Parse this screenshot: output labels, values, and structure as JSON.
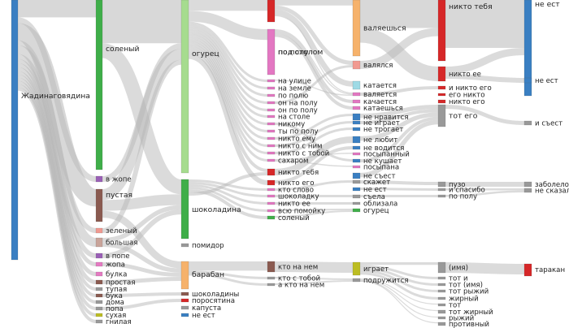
{
  "columns": [
    {
      "nodes": [
        {
          "label": "Жадинаговядина",
          "color": "#3a7fc2"
        }
      ]
    },
    {
      "nodes": [
        {
          "label": "соленый",
          "color": "#3fae49"
        },
        {
          "label": "в жопе",
          "color": "#9a5fb6"
        },
        {
          "label": "пустая",
          "color": "#8a5a50"
        },
        {
          "label": "зеленый",
          "color": "#f19a91"
        },
        {
          "label": "большая",
          "color": "#c9a49a"
        },
        {
          "label": "в попе",
          "color": "#9a5fb6"
        },
        {
          "label": "жопа",
          "color": "#e47ac2"
        },
        {
          "label": "булка",
          "color": "#e47ac2"
        },
        {
          "label": "простая",
          "color": "#8a5a50"
        },
        {
          "label": "тупая",
          "color": "#999999"
        },
        {
          "label": "бука",
          "color": "#8a5a50"
        },
        {
          "label": "дома",
          "color": "#999999"
        },
        {
          "label": "попа",
          "color": "#999999"
        },
        {
          "label": "сухая",
          "color": "#bcbd22"
        },
        {
          "label": "гнилая",
          "color": "#999999"
        }
      ]
    },
    {
      "nodes": [
        {
          "label": "огурец",
          "color": "#a6dc8f"
        },
        {
          "label": "шоколадина",
          "color": "#3fae49"
        },
        {
          "label": "помидор",
          "color": "#999999"
        },
        {
          "label": "барабан",
          "color": "#f6b26b"
        },
        {
          "label": "шоколадины",
          "color": "#8a5a50"
        },
        {
          "label": "поросятина",
          "color": "#d62728"
        },
        {
          "label": "капуста",
          "color": "#999999"
        },
        {
          "label": "не ест",
          "color": "#3a7fc2"
        }
      ]
    },
    {
      "nodes": [
        {
          "label": "по полу",
          "color": "#d62728"
        },
        {
          "label": "под столом",
          "color": "#e377c2"
        },
        {
          "label": "на улице",
          "color": "#e377c2"
        },
        {
          "label": "на земле",
          "color": "#e377c2"
        },
        {
          "label": "по полю",
          "color": "#e377c2"
        },
        {
          "label": "он на полу",
          "color": "#e377c2"
        },
        {
          "label": "он по полу",
          "color": "#e377c2"
        },
        {
          "label": "на столе",
          "color": "#e377c2"
        },
        {
          "label": "никому",
          "color": "#e377c2"
        },
        {
          "label": "ты по полу",
          "color": "#e377c2"
        },
        {
          "label": "никто ему",
          "color": "#e377c2"
        },
        {
          "label": "никто с ним",
          "color": "#e377c2"
        },
        {
          "label": "никто с тобой",
          "color": "#e377c2"
        },
        {
          "label": "сахаром",
          "color": "#e377c2"
        },
        {
          "label": "никто тебя",
          "color": "#d62728"
        },
        {
          "label": "никто его",
          "color": "#d62728"
        },
        {
          "label": "кто слово",
          "color": "#e377c2"
        },
        {
          "label": "шоколадку",
          "color": "#e377c2"
        },
        {
          "label": "никто ее",
          "color": "#e377c2"
        },
        {
          "label": "всю помойку",
          "color": "#e377c2"
        },
        {
          "label": "соленый",
          "color": "#3fae49"
        },
        {
          "label": "кто на нем",
          "color": "#8a5a50"
        },
        {
          "label": "кто с тобой",
          "color": "#999999"
        },
        {
          "label": "а кто на нем",
          "color": "#999999"
        }
      ]
    },
    {
      "nodes": [
        {
          "label": "валяешься",
          "color": "#f6b26b"
        },
        {
          "label": "валялся",
          "color": "#f19a91"
        },
        {
          "label": "катается",
          "color": "#9edae5"
        },
        {
          "label": "валяется",
          "color": "#e377c2"
        },
        {
          "label": "качается",
          "color": "#e377c2"
        },
        {
          "label": "катаешься",
          "color": "#e377c2"
        },
        {
          "label": "не нравится",
          "color": "#3a7fc2"
        },
        {
          "label": "не играет",
          "color": "#3a7fc2"
        },
        {
          "label": "не трогает",
          "color": "#3a7fc2"
        },
        {
          "label": "не любит",
          "color": "#3a7fc2"
        },
        {
          "label": "не водится",
          "color": "#3a7fc2"
        },
        {
          "label": "посыпанный",
          "color": "#e377c2"
        },
        {
          "label": "не кушает",
          "color": "#3a7fc2"
        },
        {
          "label": "посыпана",
          "color": "#e377c2"
        },
        {
          "label": "не съест",
          "color": "#3a7fc2"
        },
        {
          "label": "скажет",
          "color": "#999999"
        },
        {
          "label": "не ест",
          "color": "#3a7fc2"
        },
        {
          "label": "съела",
          "color": "#999999"
        },
        {
          "label": "облизала",
          "color": "#999999"
        },
        {
          "label": "огурец",
          "color": "#3fae49"
        },
        {
          "label": "играет",
          "color": "#bcbd22"
        },
        {
          "label": "подружится",
          "color": "#999999"
        }
      ]
    },
    {
      "nodes": [
        {
          "label": "никто тебя",
          "color": "#d62728"
        },
        {
          "label": "никто ее",
          "color": "#d62728"
        },
        {
          "label": "и никто его",
          "color": "#d62728"
        },
        {
          "label": "его никто",
          "color": "#d62728"
        },
        {
          "label": "никто его",
          "color": "#d62728"
        },
        {
          "label": "тот его",
          "color": "#999999"
        },
        {
          "label": "пузо",
          "color": "#999999"
        },
        {
          "label": "и спасибо",
          "color": "#999999"
        },
        {
          "label": "по полу",
          "color": "#999999"
        },
        {
          "label": "(имя)",
          "color": "#999999"
        },
        {
          "label": "тот и",
          "color": "#999999"
        },
        {
          "label": "тот (имя)",
          "color": "#999999"
        },
        {
          "label": "тот рыжий",
          "color": "#999999"
        },
        {
          "label": "жирный",
          "color": "#999999"
        },
        {
          "label": "тот",
          "color": "#999999"
        },
        {
          "label": "тот жирный",
          "color": "#999999"
        },
        {
          "label": "рыжий",
          "color": "#999999"
        },
        {
          "label": "противный",
          "color": "#999999"
        }
      ]
    },
    {
      "nodes": [
        {
          "label": "не ест",
          "color": "#3a7fc2"
        },
        {
          "label": "не ест",
          "color": "#3a7fc2"
        },
        {
          "label": "и съест",
          "color": "#999999"
        },
        {
          "label": "заболело",
          "color": "#999999"
        },
        {
          "label": "не сказал",
          "color": "#999999"
        },
        {
          "label": "таракан",
          "color": "#d62728"
        }
      ]
    }
  ],
  "colors": {
    "link": "#b8b8b8",
    "accent_blue": "#3a7fc2",
    "accent_green": "#3fae49",
    "accent_red": "#d62728"
  }
}
